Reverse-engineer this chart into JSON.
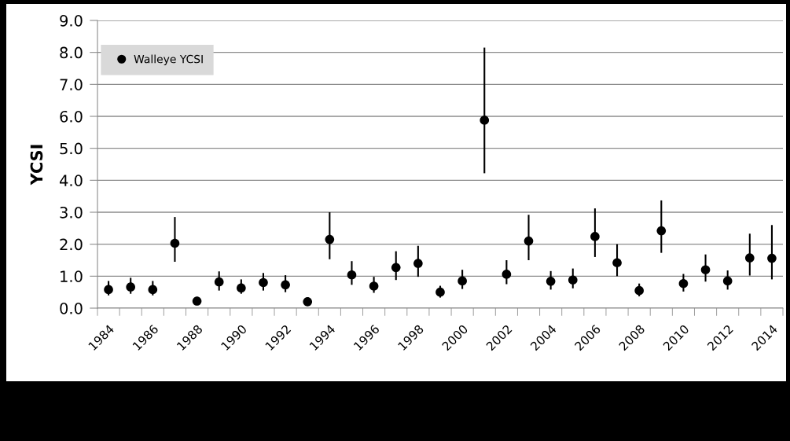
{
  "chart_data": {
    "type": "scatter",
    "ylabel": "YCSI",
    "categories": [
      "1984",
      null,
      "1986",
      null,
      "1988",
      null,
      "1990",
      null,
      "1992",
      null,
      "1994",
      null,
      "1996",
      null,
      "1998",
      null,
      "2000",
      null,
      "2002",
      null,
      "2004",
      null,
      "2006",
      null,
      "2008",
      null,
      "2010",
      null,
      "2012",
      null,
      "2014"
    ],
    "series": [
      {
        "name": "Walleye YCSI",
        "color": "#000000",
        "values": [
          0.58,
          0.66,
          0.58,
          2.03,
          0.22,
          0.82,
          0.63,
          0.8,
          0.73,
          0.2,
          2.15,
          1.04,
          0.69,
          1.27,
          1.4,
          0.5,
          0.85,
          5.88,
          1.06,
          2.1,
          0.84,
          0.88,
          2.24,
          1.42,
          0.55,
          2.42,
          0.77,
          1.2,
          0.85,
          1.57,
          1.56
        ],
        "errors": [
          [
            0.4,
            0.85
          ],
          [
            0.45,
            0.95
          ],
          [
            0.4,
            0.85
          ],
          [
            1.45,
            2.85
          ],
          null,
          [
            0.55,
            1.15
          ],
          [
            0.45,
            0.9
          ],
          [
            0.55,
            1.1
          ],
          [
            0.5,
            1.03
          ],
          null,
          [
            1.53,
            3.0
          ],
          [
            0.73,
            1.47
          ],
          [
            0.48,
            0.98
          ],
          [
            0.88,
            1.78
          ],
          [
            0.98,
            1.95
          ],
          [
            0.33,
            0.7
          ],
          [
            0.6,
            1.2
          ],
          [
            4.22,
            8.15
          ],
          [
            0.75,
            1.5
          ],
          [
            1.5,
            2.92
          ],
          [
            0.58,
            1.16
          ],
          [
            0.62,
            1.24
          ],
          [
            1.6,
            3.12
          ],
          [
            1.0,
            2.0
          ],
          [
            0.37,
            0.77
          ],
          [
            1.73,
            3.37
          ],
          [
            0.52,
            1.07
          ],
          [
            0.83,
            1.68
          ],
          [
            0.58,
            1.18
          ],
          [
            1.02,
            2.33
          ],
          [
            0.9,
            2.6
          ]
        ]
      }
    ],
    "ylim": [
      0,
      9
    ],
    "yticks": [
      {
        "value": 0,
        "label": "0.0"
      },
      {
        "value": 1,
        "label": "1.0"
      },
      {
        "value": 2,
        "label": "2.0"
      },
      {
        "value": 3,
        "label": "3.0"
      },
      {
        "value": 4,
        "label": "4.0"
      },
      {
        "value": 5,
        "label": "5.0"
      },
      {
        "value": 6,
        "label": "6.0"
      },
      {
        "value": 7,
        "label": "7.0"
      },
      {
        "value": 8,
        "label": "8.0"
      },
      {
        "value": 9,
        "label": "9.0"
      }
    ],
    "grid": "y",
    "legend": "top left",
    "marker": "circle"
  }
}
